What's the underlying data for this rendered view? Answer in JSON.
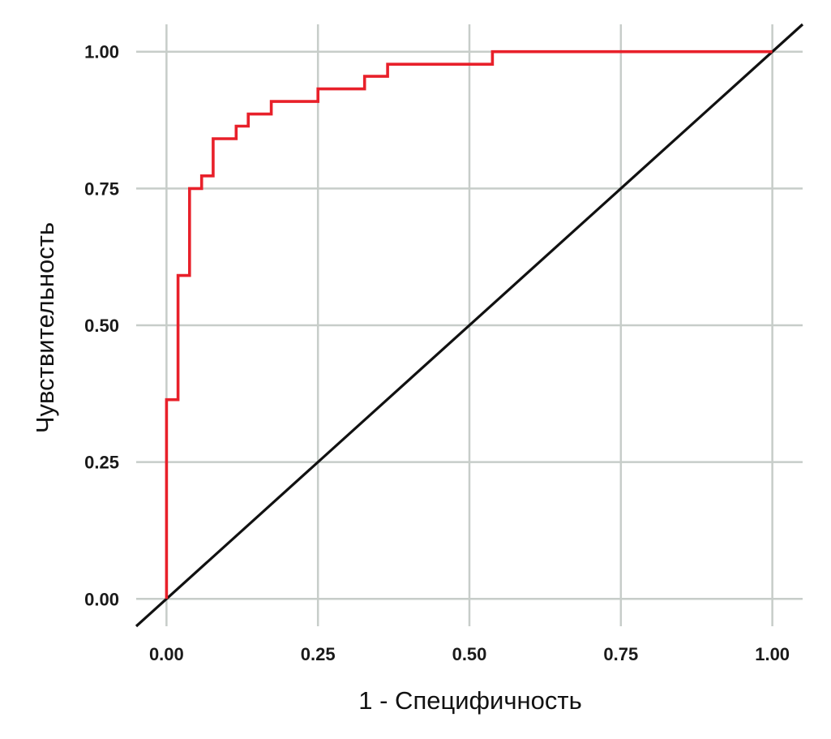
{
  "chart_data": {
    "type": "line",
    "title": "",
    "xlabel": "1 - Специфичность",
    "ylabel": "Чувствительность",
    "xlim": [
      -0.05,
      1.05
    ],
    "ylim": [
      -0.05,
      1.05
    ],
    "x_ticks": [
      0.0,
      0.25,
      0.5,
      0.75,
      1.0
    ],
    "y_ticks": [
      0.0,
      0.25,
      0.5,
      0.75,
      1.0
    ],
    "x_tick_labels": [
      "0.00",
      "0.25",
      "0.50",
      "0.75",
      "1.00"
    ],
    "y_tick_labels": [
      "0.00",
      "0.25",
      "0.50",
      "0.75",
      "1.00"
    ],
    "grid": true,
    "series": [
      {
        "color": "#e8202a",
        "style": "step",
        "points": [
          [
            0.0,
            0.0
          ],
          [
            0.0,
            0.364
          ],
          [
            0.019,
            0.364
          ],
          [
            0.019,
            0.591
          ],
          [
            0.038,
            0.591
          ],
          [
            0.038,
            0.75
          ],
          [
            0.058,
            0.75
          ],
          [
            0.058,
            0.773
          ],
          [
            0.077,
            0.773
          ],
          [
            0.077,
            0.841
          ],
          [
            0.115,
            0.841
          ],
          [
            0.115,
            0.864
          ],
          [
            0.135,
            0.864
          ],
          [
            0.135,
            0.886
          ],
          [
            0.173,
            0.886
          ],
          [
            0.173,
            0.909
          ],
          [
            0.25,
            0.909
          ],
          [
            0.25,
            0.932
          ],
          [
            0.327,
            0.932
          ],
          [
            0.327,
            0.955
          ],
          [
            0.365,
            0.955
          ],
          [
            0.365,
            0.977
          ],
          [
            0.538,
            0.977
          ],
          [
            0.538,
            1.0
          ],
          [
            1.0,
            1.0
          ]
        ]
      },
      {
        "color": "#111111",
        "style": "reference",
        "points": [
          [
            -0.05,
            -0.05
          ],
          [
            1.05,
            1.05
          ]
        ]
      }
    ]
  }
}
